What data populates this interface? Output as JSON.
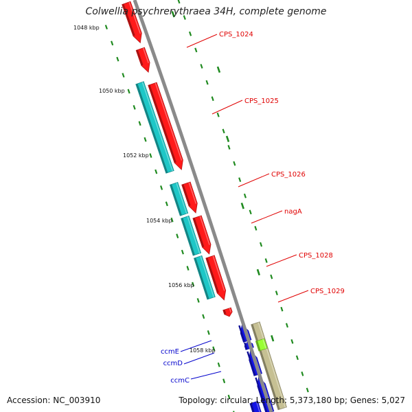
{
  "title": "Colwellia psychrerythraea 34H, complete genome",
  "footer": {
    "accession": "Accession: NC_003910",
    "summary": "Topology: circular; Length: 5,373,180 bp; Genes: 5,027"
  },
  "colors": {
    "backbone": "#8a8a8a",
    "tick": "#1f8a1f",
    "forward_gene": "#ff1a1a",
    "cds_feature": "#1ec7c7",
    "reverse_gene": "#1414e6",
    "trna_feature": "#c6c093",
    "misc_feature": "#99ff33",
    "label_red": "#e00000",
    "label_blue": "#0000cc"
  },
  "scale": {
    "kbp_labels": [
      "1048 kbp",
      "1050 kbp",
      "1052 kbp",
      "1054 kbp",
      "1056 kbp",
      "1058 kbp"
    ]
  },
  "gene_labels": {
    "forward": [
      "CPS_1024",
      "CPS_1025",
      "CPS_1026",
      "nagA",
      "CPS_1028",
      "CPS_1029"
    ],
    "reverse": [
      "ccmE",
      "ccmD",
      "ccmC"
    ]
  }
}
